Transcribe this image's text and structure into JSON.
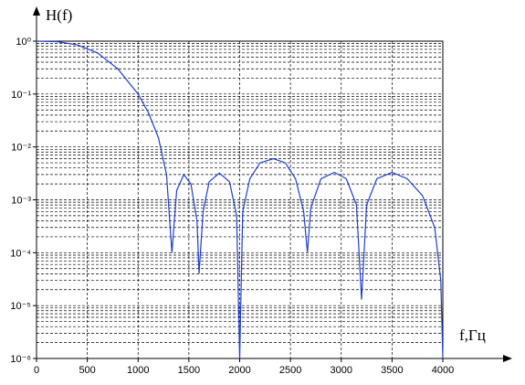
{
  "chart_data": {
    "type": "line",
    "y_label": "H(f)",
    "x_label": "f,Гц",
    "log_y": true,
    "grid": true,
    "minor_grid": true,
    "xlim": [
      0,
      4000
    ],
    "xticks": [
      0,
      500,
      1000,
      1500,
      2000,
      2500,
      3000,
      3500,
      4000
    ],
    "ylim": [
      1e-06,
      1
    ],
    "yticks": [
      {
        "value": 1,
        "label": "10⁰"
      },
      {
        "value": 0.1,
        "label": "10⁻¹"
      },
      {
        "value": 0.01,
        "label": "10⁻²"
      },
      {
        "value": 0.001,
        "label": "10⁻³"
      },
      {
        "value": 0.0001,
        "label": "10⁻⁴"
      },
      {
        "value": 1e-05,
        "label": "10⁻⁵"
      },
      {
        "value": 1e-06,
        "label": "10⁻⁶"
      }
    ],
    "series": [
      {
        "color": "#1f3fd0",
        "x": [
          0,
          200,
          400,
          600,
          800,
          1000,
          1100,
          1200,
          1280,
          1333,
          1380,
          1450,
          1520,
          1580,
          1600,
          1640,
          1700,
          1800,
          1900,
          1970,
          2000,
          2030,
          2100,
          2200,
          2333,
          2450,
          2550,
          2630,
          2667,
          2700,
          2800,
          2933,
          3050,
          3150,
          3200,
          3250,
          3350,
          3500,
          3650,
          3800,
          3920,
          3980,
          4000
        ],
        "values": [
          1,
          0.98,
          0.85,
          0.6,
          0.3,
          0.1,
          0.045,
          0.015,
          0.003,
          0.0001,
          0.0015,
          0.003,
          0.002,
          0.0004,
          4e-05,
          0.0006,
          0.0022,
          0.0032,
          0.0022,
          0.0005,
          1e-06,
          0.0006,
          0.0025,
          0.005,
          0.006,
          0.005,
          0.0025,
          0.0006,
          0.0001,
          0.0007,
          0.0025,
          0.0033,
          0.0025,
          0.0008,
          1.3e-05,
          0.0008,
          0.0025,
          0.0033,
          0.0025,
          0.0012,
          0.0003,
          3e-05,
          1e-06
        ]
      }
    ]
  }
}
